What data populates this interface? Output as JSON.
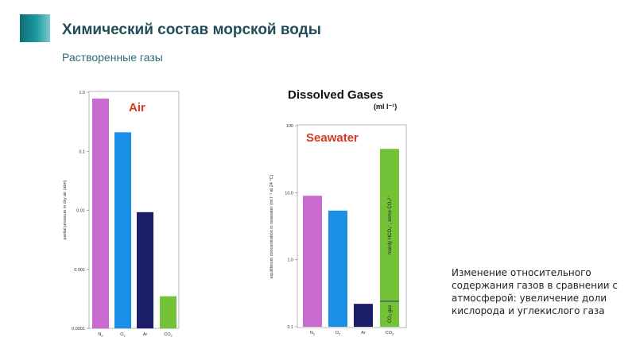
{
  "slide": {
    "title": "Химический состав морской воды",
    "subtitle": "Растворенные газы",
    "note": "Изменение относительного содержания газов в сравнении с атмосферой: увеличение доли кислорода и углекислого газа",
    "accent_color": "#1b9aa0"
  },
  "chart_data": [
    {
      "type": "bar",
      "title": "Air",
      "title_color": "#d8391d",
      "ylabel": "partial pressure in dry air (atm)",
      "scale": "log",
      "ylim": [
        0.0001,
        1.0
      ],
      "yticks": [
        "1.0",
        "0.1",
        "0.01",
        "0.001",
        "0.0001"
      ],
      "ytick_values": [
        1.0,
        0.1,
        0.01,
        0.001,
        0.0001
      ],
      "categories": [
        "N2",
        "O2",
        "Ar",
        "CO2"
      ],
      "values": [
        0.78,
        0.21,
        0.0093,
        0.00035
      ],
      "colors": [
        "#c86ad0",
        "#1a8fe6",
        "#1c1e6a",
        "#74c238"
      ]
    },
    {
      "type": "bar",
      "heading": "Dissolved Gases",
      "heading_unit": "(ml l⁻¹)",
      "title": "Seawater",
      "title_color": "#d8391d",
      "ylabel": "equilibrium concentration in seawater (ml l⁻¹ at 24 °C)",
      "scale": "log",
      "ylim": [
        0.1,
        100
      ],
      "yticks": [
        "100",
        "10.0",
        "1.0",
        "0.1"
      ],
      "ytick_values": [
        100,
        10,
        1,
        0.1
      ],
      "categories": [
        "N2",
        "O2",
        "Ar",
        "CO2"
      ],
      "values": [
        9.0,
        5.4,
        0.22,
        45
      ],
      "colors": [
        "#c86ad0",
        "#1a8fe6",
        "#1c1e6a",
        "#74c238"
      ],
      "co2_split": 0.24,
      "co2_annotation_upper": "mainly HCO₃⁻, some CO₃²⁻",
      "co2_annotation_lower": "CO₂ gas"
    }
  ]
}
